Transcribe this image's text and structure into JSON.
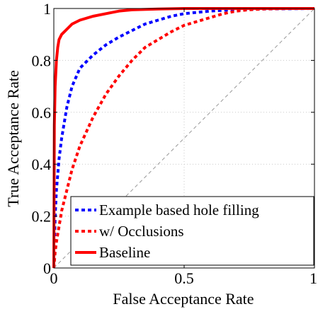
{
  "chart_data": {
    "type": "line",
    "xlabel": "False Acceptance Rate",
    "ylabel": "True Acceptance Rate",
    "xlim": [
      0,
      1
    ],
    "ylim": [
      0,
      1
    ],
    "grid": true,
    "legend_position": "bottom-right",
    "x_ticks": [
      {
        "value": 0,
        "label": "0"
      },
      {
        "value": 0.5,
        "label": "0.5"
      },
      {
        "value": 1,
        "label": "1"
      }
    ],
    "y_ticks": [
      {
        "value": 0,
        "label": "0"
      },
      {
        "value": 0.2,
        "label": "0.2"
      },
      {
        "value": 0.4,
        "label": "0.4"
      },
      {
        "value": 0.6,
        "label": "0.6"
      },
      {
        "value": 0.8,
        "label": "0.8"
      },
      {
        "value": 1,
        "label": "1"
      }
    ],
    "series": [
      {
        "name": "Example based hole filling",
        "color": "#0000ff",
        "style": "dashed",
        "x": [
          0,
          0.005,
          0.01,
          0.02,
          0.03,
          0.05,
          0.07,
          0.1,
          0.15,
          0.2,
          0.25,
          0.3,
          0.35,
          0.4,
          0.45,
          0.5,
          0.55,
          0.6,
          0.65,
          0.7,
          0.8,
          0.9,
          1.0
        ],
        "y": [
          0,
          0.2,
          0.3,
          0.42,
          0.5,
          0.62,
          0.7,
          0.77,
          0.82,
          0.86,
          0.89,
          0.915,
          0.94,
          0.955,
          0.97,
          0.98,
          0.985,
          0.99,
          0.993,
          0.995,
          0.998,
          0.999,
          1.0
        ]
      },
      {
        "name": "w/ Occlusions",
        "color": "#ff0000",
        "style": "dashed",
        "x": [
          0,
          0.005,
          0.01,
          0.02,
          0.03,
          0.05,
          0.07,
          0.1,
          0.15,
          0.2,
          0.25,
          0.3,
          0.35,
          0.4,
          0.45,
          0.5,
          0.55,
          0.6,
          0.65,
          0.7,
          0.75,
          0.8,
          0.9,
          1.0
        ],
        "y": [
          0,
          0.06,
          0.1,
          0.16,
          0.22,
          0.3,
          0.38,
          0.47,
          0.58,
          0.67,
          0.74,
          0.8,
          0.85,
          0.88,
          0.91,
          0.935,
          0.95,
          0.965,
          0.98,
          0.99,
          0.995,
          0.998,
          1.0,
          1.0
        ]
      },
      {
        "name": "Baseline",
        "color": "#ff0000",
        "style": "solid",
        "x": [
          0,
          0.002,
          0.005,
          0.01,
          0.015,
          0.02,
          0.03,
          0.04,
          0.05,
          0.07,
          0.1,
          0.15,
          0.2,
          0.25,
          0.3,
          0.4,
          0.5,
          0.6,
          0.8,
          1.0
        ],
        "y": [
          0,
          0.55,
          0.7,
          0.8,
          0.85,
          0.88,
          0.9,
          0.91,
          0.92,
          0.94,
          0.955,
          0.97,
          0.98,
          0.99,
          0.995,
          0.998,
          1.0,
          1.0,
          1.0,
          1.0
        ]
      }
    ],
    "reference_line": {
      "x": [
        0,
        1
      ],
      "y": [
        0,
        1
      ],
      "color": "#999999",
      "style": "dashed"
    }
  }
}
